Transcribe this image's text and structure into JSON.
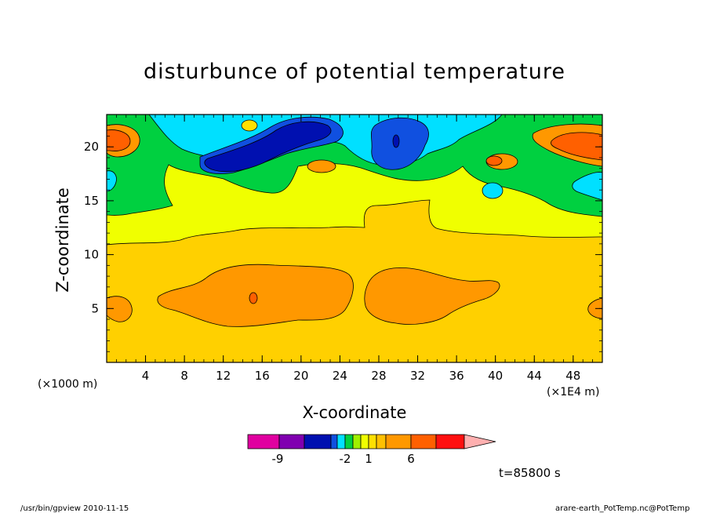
{
  "chart_data": {
    "type": "heatmap",
    "title": "disturbunce of potential temperature",
    "xlabel": "X-coordinate",
    "ylabel": "Z-coordinate",
    "x_unit_left": "(×1000 m)",
    "x_unit_right": "(×1E4 m)",
    "xlim": [
      0,
      51
    ],
    "ylim": [
      0,
      23
    ],
    "x_ticks": [
      4,
      8,
      12,
      16,
      20,
      24,
      28,
      32,
      36,
      40,
      44,
      48
    ],
    "y_ticks": [
      5,
      10,
      15,
      20
    ],
    "colorbar": {
      "colors": [
        "#e000a0",
        "#8000b0",
        "#0010b0",
        "#1050e0",
        "#00e0ff",
        "#00d040",
        "#a0f000",
        "#f0ff00",
        "#ffe000",
        "#ffc000",
        "#ff9800",
        "#ff6000",
        "#ff1010",
        "#ff8080",
        "#ffb0b0"
      ],
      "tick_labels": [
        "-9",
        "-2",
        "1",
        "6"
      ]
    },
    "time_label": "t=85800 s",
    "footer_left": "/usr/bin/gpview  2010-11-15",
    "footer_right": "arare-earth_PotTemp.nc@PotTemp"
  }
}
